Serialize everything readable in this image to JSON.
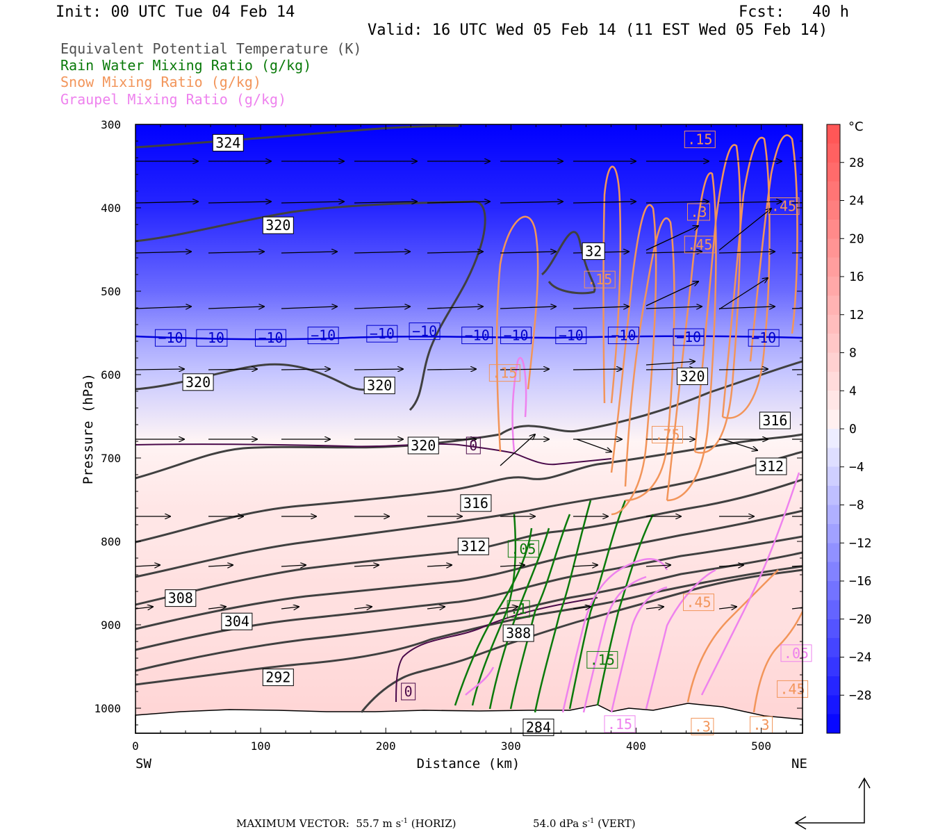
{
  "header": {
    "init": "Init: 00 UTC Tue 04 Feb 14",
    "fcst": "Fcst:   40 h",
    "valid": "Valid: 16 UTC Wed 05 Feb 14 (11 EST Wed 05 Feb 14)"
  },
  "legend": [
    {
      "label": "Equivalent Potential Temperature (K)",
      "color": "#505050"
    },
    {
      "label": "Rain Water Mixing Ratio (g/kg)",
      "color": "#0a7a0a"
    },
    {
      "label": "Snow Mixing Ratio (g/kg)",
      "color": "#f2955a"
    },
    {
      "label": "Graupel Mixing Ratio (g/kg)",
      "color": "#ee82ee"
    }
  ],
  "footer": {
    "vector_label": "MAXIMUM VECTOR:  55.7 m s",
    "vector_horiz": "(HORIZ)",
    "vector_vert_value": "54.0 dPa s",
    "vector_vert": "(VERT)",
    "exponent": "-1"
  },
  "colorbar": {
    "unit": "°C",
    "ticks": [
      28,
      24,
      20,
      16,
      12,
      8,
      4,
      0,
      -4,
      -8,
      -12,
      -16,
      -20,
      -24,
      -28
    ]
  },
  "chart_data": {
    "type": "heatmap",
    "title": "",
    "xlabel": "Distance (km)",
    "ylabel": "Pressure (hPa)",
    "xlim": [
      0,
      533
    ],
    "ylim": [
      1030,
      300
    ],
    "y_scale": "linear, inverted",
    "x_ticks": [
      0,
      100,
      200,
      300,
      400,
      500
    ],
    "y_ticks": [
      300,
      400,
      500,
      600,
      700,
      800,
      900,
      1000
    ],
    "x_end_labels": {
      "left": "SW",
      "right": "NE"
    },
    "shaded_field": "Temperature (°C)",
    "temperature_profile": {
      "pressure": [
        300,
        400,
        500,
        560,
        600,
        680,
        700,
        760,
        800,
        850,
        900,
        950,
        1000
      ],
      "celsius": [
        -35,
        -27,
        -18,
        -10,
        -6,
        0,
        1,
        3,
        3,
        4,
        4,
        5,
        6
      ]
    },
    "theta_e_labels": [
      {
        "x": 74,
        "p": 322,
        "text": "324"
      },
      {
        "x": 114,
        "p": 421,
        "text": "320"
      },
      {
        "x": 366,
        "p": 452,
        "text": "32"
      },
      {
        "x": 50,
        "p": 609,
        "text": "320"
      },
      {
        "x": 195,
        "p": 613,
        "text": "320"
      },
      {
        "x": 230,
        "p": 685,
        "text": "320"
      },
      {
        "x": 445,
        "p": 602,
        "text": "320"
      },
      {
        "x": 511,
        "p": 655,
        "text": "316"
      },
      {
        "x": 508,
        "p": 710,
        "text": "312"
      },
      {
        "x": 272,
        "p": 754,
        "text": "316"
      },
      {
        "x": 270,
        "p": 806,
        "text": "312"
      },
      {
        "x": 36,
        "p": 868,
        "text": "308"
      },
      {
        "x": 81,
        "p": 896,
        "text": "304"
      },
      {
        "x": 306,
        "p": 910,
        "text": "388"
      },
      {
        "x": 114,
        "p": 963,
        "text": "292"
      },
      {
        "x": 322,
        "p": 1023,
        "text": "284"
      }
    ],
    "isotherm_labels": [
      {
        "x": 28,
        "p": 556,
        "text": "−10"
      },
      {
        "x": 61,
        "p": 556,
        "text": "−10"
      },
      {
        "x": 108,
        "p": 556,
        "text": "−10"
      },
      {
        "x": 150,
        "p": 553,
        "text": "−10"
      },
      {
        "x": 197,
        "p": 551,
        "text": "−10"
      },
      {
        "x": 231,
        "p": 548,
        "text": "−10"
      },
      {
        "x": 273,
        "p": 553,
        "text": "−10"
      },
      {
        "x": 304,
        "p": 553,
        "text": "−10"
      },
      {
        "x": 348,
        "p": 553,
        "text": "−10"
      },
      {
        "x": 390,
        "p": 553,
        "text": "−10"
      },
      {
        "x": 442,
        "p": 555,
        "text": "−10"
      },
      {
        "x": 502,
        "p": 556,
        "text": "−10"
      },
      {
        "x": 270,
        "p": 685,
        "text": "0"
      },
      {
        "x": 218,
        "p": 980,
        "text": "0"
      }
    ],
    "rain_labels": [
      {
        "x": 310,
        "p": 809,
        "text": ".05"
      },
      {
        "x": 306,
        "p": 881,
        "text": ".1"
      },
      {
        "x": 373,
        "p": 942,
        "text": ".15"
      }
    ],
    "snow_labels": [
      {
        "x": 451,
        "p": 318,
        "text": ".15"
      },
      {
        "x": 450,
        "p": 405,
        "text": ".3"
      },
      {
        "x": 451,
        "p": 444,
        "text": ".45"
      },
      {
        "x": 518,
        "p": 398,
        "text": ".45"
      },
      {
        "x": 371,
        "p": 486,
        "text": ".15"
      },
      {
        "x": 295,
        "p": 598,
        "text": ".15"
      },
      {
        "x": 425,
        "p": 672,
        "text": ".75"
      },
      {
        "x": 450,
        "p": 873,
        "text": ".45"
      },
      {
        "x": 525,
        "p": 977,
        "text": ".45"
      },
      {
        "x": 453,
        "p": 1022,
        "text": ".3"
      },
      {
        "x": 500,
        "p": 1020,
        "text": ".3"
      }
    ],
    "graupel_labels": [
      {
        "x": 528,
        "p": 934,
        "text": ".05"
      },
      {
        "x": 387,
        "p": 1019,
        "text": ".15"
      }
    ]
  }
}
